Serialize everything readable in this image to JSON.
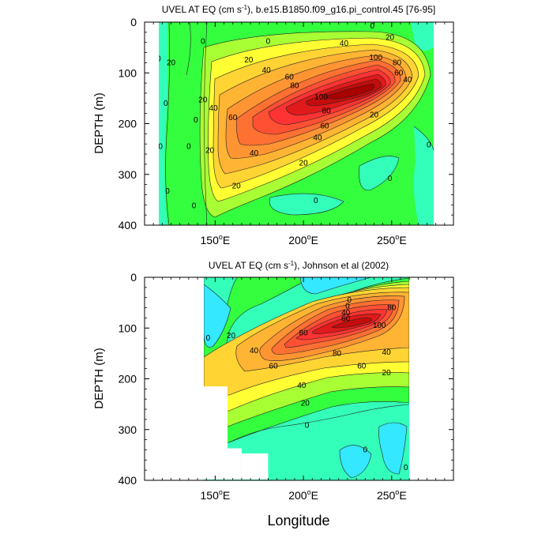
{
  "chart_data": [
    {
      "type": "contour",
      "title_prefix": "UVEL AT EQ (cm s",
      "title_sup": "-1",
      "title_suffix": "), b.e15.B1850.f09_g16.pi_control.45 [76-95]",
      "xlabel": "",
      "ylabel": "DEPTH (m)",
      "xlim": [
        110,
        285
      ],
      "ylim": [
        0,
        400
      ],
      "y_reversed": true,
      "yticks": [
        0,
        100,
        200,
        300,
        400
      ],
      "xticks": [
        {
          "value": 150,
          "label": "150",
          "sup": "o",
          "suffix": "E"
        },
        {
          "value": 200,
          "label": "200",
          "sup": "o",
          "suffix": "E"
        },
        {
          "value": 250,
          "label": "250",
          "sup": "o",
          "suffix": "E"
        }
      ],
      "data_lon_range": [
        117,
        278
      ],
      "jet_core": {
        "lon": 228,
        "depth": 120,
        "max_speed": 110
      },
      "contour_levels": [
        -10,
        0,
        10,
        20,
        30,
        40,
        50,
        60,
        70,
        80,
        90,
        100
      ],
      "contour_labels": [
        {
          "lon": 143,
          "depth": 38,
          "text": "0"
        },
        {
          "lon": 180,
          "depth": 38,
          "text": "0"
        },
        {
          "lon": 239,
          "depth": 8,
          "text": "0"
        },
        {
          "lon": 249,
          "depth": 30,
          "text": "20"
        },
        {
          "lon": 223,
          "depth": 42,
          "text": "40"
        },
        {
          "lon": 169,
          "depth": 75,
          "text": "20"
        },
        {
          "lon": 179,
          "depth": 95,
          "text": "40"
        },
        {
          "lon": 192,
          "depth": 108,
          "text": "60"
        },
        {
          "lon": 195,
          "depth": 125,
          "text": "80"
        },
        {
          "lon": 241,
          "depth": 70,
          "text": "100"
        },
        {
          "lon": 253,
          "depth": 80,
          "text": "80"
        },
        {
          "lon": 254,
          "depth": 100,
          "text": "60"
        },
        {
          "lon": 259,
          "depth": 114,
          "text": "40"
        },
        {
          "lon": 210,
          "depth": 148,
          "text": "100"
        },
        {
          "lon": 213,
          "depth": 175,
          "text": "80"
        },
        {
          "lon": 212,
          "depth": 205,
          "text": "60"
        },
        {
          "lon": 208,
          "depth": 228,
          "text": "40"
        },
        {
          "lon": 200,
          "depth": 278,
          "text": "20"
        },
        {
          "lon": 240,
          "depth": 183,
          "text": "20"
        },
        {
          "lon": 160,
          "depth": 188,
          "text": "60"
        },
        {
          "lon": 172,
          "depth": 258,
          "text": "40"
        },
        {
          "lon": 149,
          "depth": 170,
          "text": "40"
        },
        {
          "lon": 143,
          "depth": 153,
          "text": "20"
        },
        {
          "lon": 147,
          "depth": 253,
          "text": "20"
        },
        {
          "lon": 162,
          "depth": 323,
          "text": "20"
        },
        {
          "lon": 125,
          "depth": 80,
          "text": "20"
        },
        {
          "lon": 118,
          "depth": 72,
          "text": "0"
        },
        {
          "lon": 122,
          "depth": 160,
          "text": "0"
        },
        {
          "lon": 119,
          "depth": 245,
          "text": "0"
        },
        {
          "lon": 123,
          "depth": 333,
          "text": "0"
        },
        {
          "lon": 139,
          "depth": 193,
          "text": "0"
        },
        {
          "lon": 135,
          "depth": 245,
          "text": "0"
        },
        {
          "lon": 207,
          "depth": 352,
          "text": "0"
        },
        {
          "lon": 249,
          "depth": 308,
          "text": "0"
        },
        {
          "lon": 271,
          "depth": 242,
          "text": "0"
        },
        {
          "lon": 278,
          "depth": 287,
          "text": "0"
        },
        {
          "lon": 138,
          "depth": 362,
          "text": "0"
        }
      ]
    },
    {
      "type": "contour",
      "title_prefix": "UVEL AT EQ (cm s",
      "title_sup": "-1",
      "title_suffix": "), Johnson et al (2002)",
      "xlabel": "Longitude",
      "ylabel": "DEPTH (m)",
      "xlim": [
        110,
        285
      ],
      "ylim": [
        0,
        400
      ],
      "y_reversed": true,
      "yticks": [
        0,
        100,
        200,
        300,
        400
      ],
      "xticks": [
        {
          "value": 150,
          "label": "150",
          "sup": "o",
          "suffix": "E"
        },
        {
          "value": 200,
          "label": "200",
          "sup": "o",
          "suffix": "E"
        },
        {
          "value": 250,
          "label": "250",
          "sup": "o",
          "suffix": "E"
        }
      ],
      "data_lon_range": [
        143,
        265
      ],
      "missing_regions": [
        {
          "lon": [
            110,
            143
          ],
          "depth": [
            0,
            400
          ]
        },
        {
          "lon": [
            143,
            157
          ],
          "depth": [
            215,
            400
          ]
        },
        {
          "lon": [
            157,
            165
          ],
          "depth": [
            337,
            400
          ]
        },
        {
          "lon": [
            165,
            180
          ],
          "depth": [
            347,
            400
          ]
        }
      ],
      "jet_core": {
        "lon": 230,
        "depth": 110,
        "max_speed": 105
      },
      "contour_levels": [
        -10,
        0,
        10,
        20,
        30,
        40,
        50,
        60,
        70,
        80,
        90,
        100
      ],
      "contour_labels": [
        {
          "lon": 226,
          "depth": 45,
          "text": "0"
        },
        {
          "lon": 225,
          "depth": 57,
          "text": "0"
        },
        {
          "lon": 224,
          "depth": 70,
          "text": "40"
        },
        {
          "lon": 224,
          "depth": 82,
          "text": "60"
        },
        {
          "lon": 250,
          "depth": 60,
          "text": "80"
        },
        {
          "lon": 200,
          "depth": 110,
          "text": "80"
        },
        {
          "lon": 243,
          "depth": 95,
          "text": "100"
        },
        {
          "lon": 159,
          "depth": 115,
          "text": "20"
        },
        {
          "lon": 172,
          "depth": 145,
          "text": "40"
        },
        {
          "lon": 183,
          "depth": 175,
          "text": "60"
        },
        {
          "lon": 219,
          "depth": 150,
          "text": "80"
        },
        {
          "lon": 233,
          "depth": 175,
          "text": "60"
        },
        {
          "lon": 247,
          "depth": 148,
          "text": "40"
        },
        {
          "lon": 247,
          "depth": 188,
          "text": "20"
        },
        {
          "lon": 199,
          "depth": 213,
          "text": "40"
        },
        {
          "lon": 201,
          "depth": 248,
          "text": "20"
        },
        {
          "lon": 146,
          "depth": 120,
          "text": "0"
        },
        {
          "lon": 202,
          "depth": 292,
          "text": "0"
        },
        {
          "lon": 235,
          "depth": 340,
          "text": "0"
        },
        {
          "lon": 258,
          "depth": 375,
          "text": "0"
        }
      ]
    }
  ]
}
